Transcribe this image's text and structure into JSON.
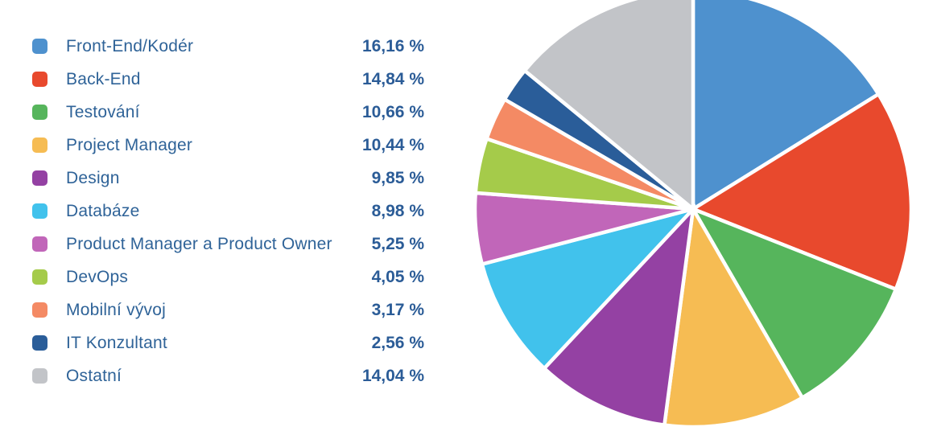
{
  "chart_data": {
    "type": "pie",
    "title": "",
    "unit": "%",
    "legend_position": "left",
    "start_angle_deg": 0,
    "direction": "clockwise",
    "slices": [
      {
        "label": "Front-End/Kodér",
        "value": 16.16,
        "display": "16,16 %",
        "color": "#4E91CE"
      },
      {
        "label": "Back-End",
        "value": 14.84,
        "display": "14,84 %",
        "color": "#E8492D"
      },
      {
        "label": "Testování",
        "value": 10.66,
        "display": "10,66 %",
        "color": "#56B55C"
      },
      {
        "label": "Project Manager",
        "value": 10.44,
        "display": "10,44 %",
        "color": "#F6BC53"
      },
      {
        "label": "Design",
        "value": 9.85,
        "display": "9,85 %",
        "color": "#9441A3"
      },
      {
        "label": "Databáze",
        "value": 8.98,
        "display": "8,98 %",
        "color": "#41C2EC"
      },
      {
        "label": "Product Manager a Product Owner",
        "value": 5.25,
        "display": "5,25 %",
        "color": "#C166B9"
      },
      {
        "label": "DevOps",
        "value": 4.05,
        "display": "4,05 %",
        "color": "#A5CB4A"
      },
      {
        "label": "Mobilní vývoj",
        "value": 3.17,
        "display": "3,17 %",
        "color": "#F48A64"
      },
      {
        "label": "IT Konzultant",
        "value": 2.56,
        "display": "2,56 %",
        "color": "#2A5D99"
      },
      {
        "label": "Ostatní",
        "value": 14.04,
        "display": "14,04 %",
        "color": "#C2C4C8"
      }
    ]
  },
  "colors": {
    "background": "#FFFFFF",
    "label_text": "#2F6398",
    "value_text": "#2B5C97",
    "slice_separator": "#FFFFFF"
  }
}
